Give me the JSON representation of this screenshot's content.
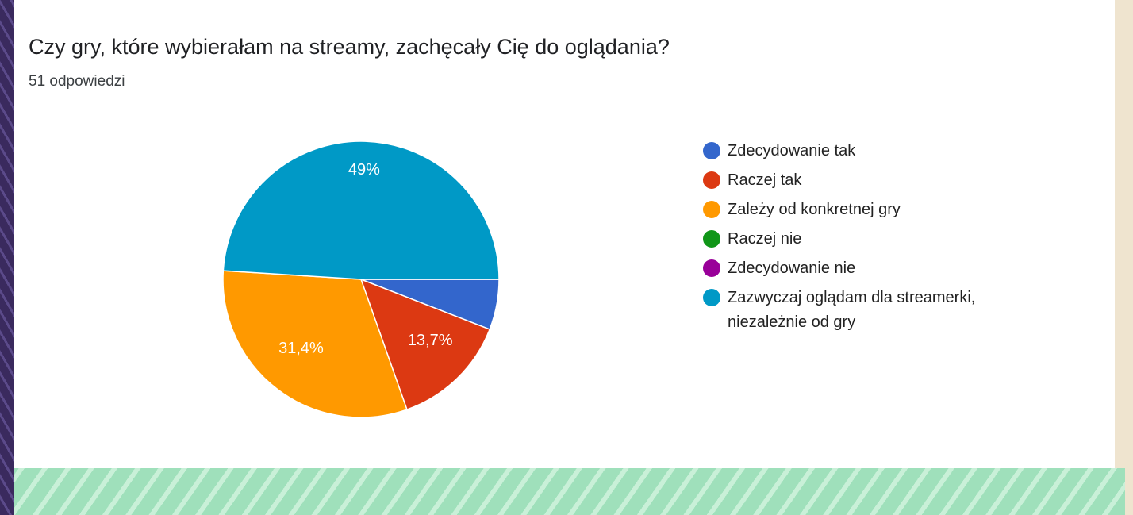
{
  "chart_data": {
    "type": "pie",
    "title": "Czy gry, które wybierałam na streamy, zachęcały Cię do oglądania?",
    "subtitle": "51 odpowiedzi",
    "categories": [
      "Zdecydowanie tak",
      "Raczej tak",
      "Zależy od konkretnej gry",
      "Raczej nie",
      "Zdecydowanie nie",
      "Zazwyczaj oglądam dla streamerki, niezależnie od gry"
    ],
    "values": [
      5.9,
      13.7,
      31.4,
      0,
      0,
      49
    ],
    "value_labels": [
      null,
      "13,7%",
      "31,4%",
      null,
      null,
      "49%"
    ],
    "colors": [
      "#3366cc",
      "#dc3912",
      "#ff9900",
      "#109618",
      "#990099",
      "#0099c6"
    ],
    "legend": "right"
  }
}
